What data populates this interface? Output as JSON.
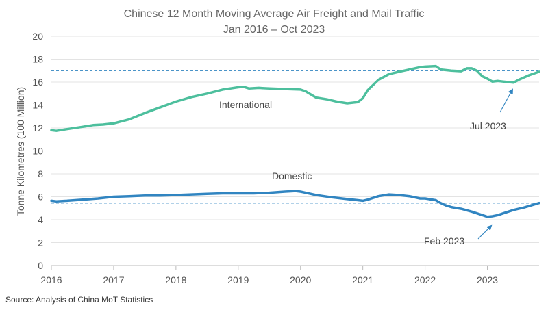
{
  "chart_data": {
    "type": "line",
    "title": "Chinese 12 Month Moving Average Air Freight and Mail Traffic",
    "subtitle": "Jan 2016 – Oct 2023",
    "ylabel": "Tonne Kilometres (100 Million)",
    "xlabel": "",
    "ylim": [
      0,
      20
    ],
    "xlim": [
      2016,
      2023.83
    ],
    "yticks": [
      "0",
      "2",
      "4",
      "6",
      "8",
      "10",
      "12",
      "14",
      "16",
      "18",
      "20"
    ],
    "xticks": [
      "2016",
      "2017",
      "2018",
      "2019",
      "2020",
      "2021",
      "2022",
      "2023"
    ],
    "grid": "horizontal",
    "series": [
      {
        "name": "International",
        "color": "#4dbf9d",
        "label": "International",
        "x": [
          2016.0,
          2016.08,
          2016.25,
          2016.5,
          2016.67,
          2016.83,
          2017.0,
          2017.25,
          2017.5,
          2017.75,
          2018.0,
          2018.25,
          2018.5,
          2018.75,
          2019.0,
          2019.08,
          2019.17,
          2019.33,
          2019.5,
          2019.75,
          2020.0,
          2020.08,
          2020.25,
          2020.42,
          2020.58,
          2020.75,
          2020.92,
          2021.0,
          2021.08,
          2021.25,
          2021.42,
          2021.58,
          2021.75,
          2021.92,
          2022.0,
          2022.17,
          2022.25,
          2022.42,
          2022.58,
          2022.67,
          2022.75,
          2022.83,
          2022.92,
          2023.0,
          2023.08,
          2023.17,
          2023.25,
          2023.42,
          2023.5,
          2023.67,
          2023.83
        ],
        "values": [
          11.8,
          11.75,
          11.9,
          12.1,
          12.25,
          12.3,
          12.4,
          12.75,
          13.3,
          13.8,
          14.3,
          14.7,
          15.0,
          15.35,
          15.55,
          15.6,
          15.45,
          15.5,
          15.45,
          15.4,
          15.35,
          15.2,
          14.65,
          14.5,
          14.3,
          14.15,
          14.25,
          14.6,
          15.3,
          16.2,
          16.7,
          16.9,
          17.1,
          17.3,
          17.35,
          17.4,
          17.1,
          17.0,
          16.95,
          17.2,
          17.2,
          17.0,
          16.5,
          16.3,
          16.05,
          16.1,
          16.05,
          15.95,
          16.2,
          16.6,
          16.9
        ]
      },
      {
        "name": "Domestic",
        "color": "#3185c1",
        "label": "Domestic",
        "x": [
          2016.0,
          2016.08,
          2016.25,
          2016.5,
          2016.75,
          2017.0,
          2017.25,
          2017.5,
          2017.75,
          2018.0,
          2018.25,
          2018.5,
          2018.75,
          2019.0,
          2019.08,
          2019.25,
          2019.5,
          2019.75,
          2019.92,
          2020.0,
          2020.08,
          2020.25,
          2020.5,
          2020.75,
          2020.92,
          2021.0,
          2021.08,
          2021.25,
          2021.42,
          2021.58,
          2021.75,
          2021.92,
          2022.0,
          2022.17,
          2022.25,
          2022.33,
          2022.42,
          2022.58,
          2022.75,
          2022.92,
          2023.0,
          2023.08,
          2023.17,
          2023.25,
          2023.42,
          2023.58,
          2023.83
        ],
        "values": [
          5.65,
          5.6,
          5.65,
          5.75,
          5.85,
          6.0,
          6.05,
          6.1,
          6.1,
          6.15,
          6.2,
          6.25,
          6.3,
          6.3,
          6.3,
          6.3,
          6.35,
          6.45,
          6.5,
          6.45,
          6.35,
          6.15,
          5.95,
          5.8,
          5.7,
          5.65,
          5.75,
          6.05,
          6.2,
          6.15,
          6.05,
          5.85,
          5.85,
          5.7,
          5.45,
          5.25,
          5.1,
          4.95,
          4.7,
          4.4,
          4.25,
          4.3,
          4.4,
          4.55,
          4.85,
          5.05,
          5.45
        ]
      }
    ],
    "reference_lines": [
      {
        "name": "International benchmark",
        "y": 17.0,
        "color": "#3185c1",
        "style": "dashed"
      },
      {
        "name": "Domestic benchmark",
        "y": 5.45,
        "color": "#3185c1",
        "style": "dashed"
      }
    ],
    "annotations": [
      {
        "text": "Jul 2023",
        "arrow_to": {
          "x": 2023.5,
          "y": 15.95
        }
      },
      {
        "text": "Feb 2023",
        "arrow_to": {
          "x": 2023.08,
          "y": 4.35
        }
      }
    ],
    "source": "Source: Analysis of China MoT Statistics"
  }
}
